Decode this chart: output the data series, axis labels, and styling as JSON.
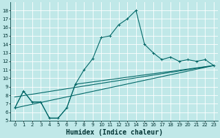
{
  "xlabel": "Humidex (Indice chaleur)",
  "bg_color": "#c0e8e8",
  "line_color": "#006666",
  "grid_color": "#b0d8d8",
  "xlim": [
    -0.5,
    23.5
  ],
  "ylim": [
    5,
    19
  ],
  "xticks": [
    0,
    1,
    2,
    3,
    4,
    5,
    6,
    7,
    8,
    9,
    10,
    11,
    12,
    13,
    14,
    15,
    16,
    17,
    18,
    19,
    20,
    21,
    22,
    23
  ],
  "yticks": [
    5,
    6,
    7,
    8,
    9,
    10,
    11,
    12,
    13,
    14,
    15,
    16,
    17,
    18
  ],
  "line1_x": [
    0,
    1,
    2,
    3,
    4,
    5,
    6,
    7,
    8,
    9,
    10,
    11,
    12,
    13,
    14,
    15,
    16,
    17,
    18,
    19,
    20,
    21,
    22,
    23
  ],
  "line1_y": [
    6.5,
    8.5,
    7.2,
    7.2,
    5.3,
    5.3,
    6.5,
    9.3,
    11.0,
    12.3,
    14.8,
    15.0,
    16.3,
    17.0,
    18.0,
    14.0,
    13.0,
    12.2,
    12.5,
    12.0,
    12.2,
    12.0,
    12.2,
    11.5
  ],
  "line2_x": [
    0,
    1,
    2,
    3,
    4,
    5,
    6,
    7,
    23
  ],
  "line2_y": [
    6.5,
    8.5,
    7.2,
    7.2,
    5.3,
    5.3,
    6.5,
    9.3,
    11.5
  ],
  "line3_x": [
    0,
    23
  ],
  "line3_y": [
    6.5,
    11.5
  ],
  "line4_x": [
    0,
    23
  ],
  "line4_y": [
    7.8,
    11.5
  ],
  "marker": "+",
  "marker_size": 3,
  "linewidth": 0.8,
  "tick_fontsize": 5,
  "xlabel_fontsize": 7
}
